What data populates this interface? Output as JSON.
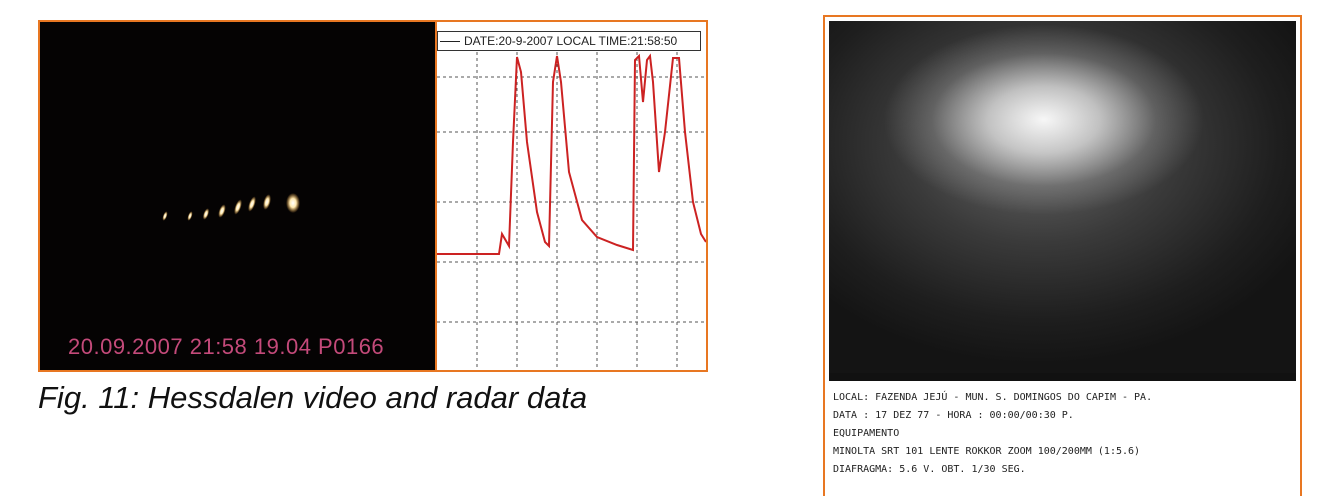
{
  "figure11": {
    "video_timestamp": "20.09.2007 21:58 19.04 P0166",
    "radar_header": "DATE:20-9-2007  LOCAL TIME:21:58:50",
    "caption": "Fig. 11: Hessdalen video and radar data",
    "colors": {
      "frame": "#e87722",
      "trace": "#cc2222",
      "stamp": "#c44a7a"
    }
  },
  "photo_notes": {
    "lines": [
      "LOCAL: FAZENDA JEJÚ - MUN. S. DOMINGOS DO CAPIM - PA.",
      "DATA : 17 DEZ 77   - HORA : 00:00/00:30 P.",
      "EQUIPAMENTO",
      "MINOLTA SRT 101  LENTE ROKKOR ZOOM   100/200MM (1:5.6)",
      "DIAFRAGMA: 5.6  V. OBT. 1/30 SEG."
    ]
  }
}
